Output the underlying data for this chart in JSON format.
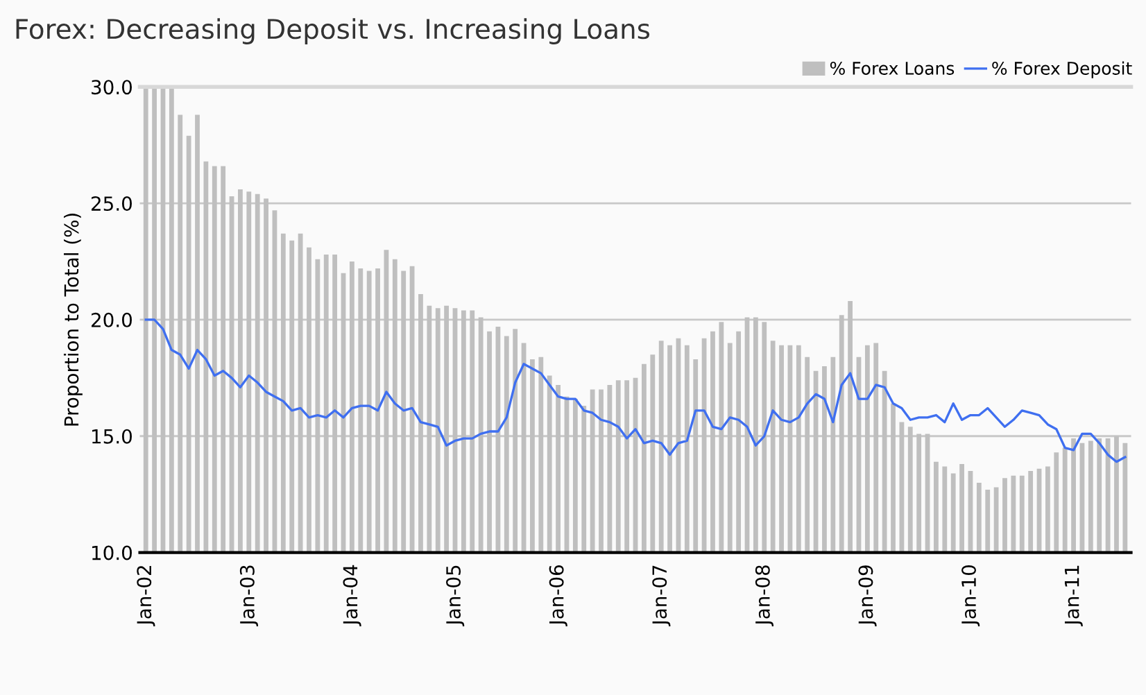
{
  "chart_data": {
    "type": "bar",
    "title": "Forex: Decreasing Deposit vs. Increasing Loans",
    "ylabel": "Proportion to Total (%)",
    "categories": [
      "Jan-02",
      null,
      null,
      null,
      null,
      null,
      null,
      null,
      null,
      null,
      null,
      null,
      "Jan-03",
      null,
      null,
      null,
      null,
      null,
      null,
      null,
      null,
      null,
      null,
      null,
      "Jan-04",
      null,
      null,
      null,
      null,
      null,
      null,
      null,
      null,
      null,
      null,
      null,
      "Jan-05",
      null,
      null,
      null,
      null,
      null,
      null,
      null,
      null,
      null,
      null,
      null,
      "Jan-06",
      null,
      null,
      null,
      null,
      null,
      null,
      null,
      null,
      null,
      null,
      null,
      "Jan-07",
      null,
      null,
      null,
      null,
      null,
      null,
      null,
      null,
      null,
      null,
      null,
      "Jan-08",
      null,
      null,
      null,
      null,
      null,
      null,
      null,
      null,
      null,
      null,
      null,
      "Jan-09",
      null,
      null,
      null,
      null,
      null,
      null,
      null,
      null,
      null,
      null,
      null,
      "Jan-10",
      null,
      null,
      null,
      null,
      null,
      null,
      null,
      null,
      null,
      null,
      null,
      "Jan-11",
      null,
      null,
      null,
      null,
      null,
      null
    ],
    "series": [
      {
        "name": "% Forex Loans",
        "color": "#bfbfbf",
        "values": [
          30,
          30,
          30,
          30,
          28.8,
          27.9,
          28.8,
          26.8,
          26.6,
          26.6,
          25.3,
          25.6,
          25.5,
          25.4,
          25.2,
          24.7,
          23.7,
          23.4,
          23.7,
          23.1,
          22.6,
          22.8,
          22.8,
          22.0,
          22.5,
          22.2,
          22.1,
          22.2,
          23.0,
          22.6,
          22.1,
          22.3,
          21.1,
          20.6,
          20.5,
          20.6,
          20.5,
          20.4,
          20.4,
          20.1,
          19.5,
          19.7,
          19.3,
          19.6,
          19.0,
          18.3,
          18.4,
          17.6,
          17.2,
          16.7,
          16.6,
          16.3,
          17.0,
          17.0,
          17.2,
          17.4,
          17.4,
          17.5,
          18.1,
          18.5,
          19.1,
          18.9,
          19.2,
          18.9,
          18.3,
          19.2,
          19.5,
          19.9,
          19.0,
          19.5,
          20.1,
          20.1,
          19.9,
          19.1,
          18.9,
          18.9,
          18.9,
          18.4,
          17.8,
          18.0,
          18.4,
          20.2,
          20.8,
          18.4,
          18.9,
          19.0,
          17.8,
          16.4,
          15.6,
          15.4,
          15.1,
          15.1,
          13.9,
          13.7,
          13.4,
          13.8,
          13.5,
          13.0,
          12.7,
          12.8,
          13.2,
          13.3,
          13.3,
          13.5,
          13.6,
          13.7,
          14.3,
          14.5,
          14.9,
          14.7,
          14.8,
          14.9,
          14.9,
          15.0,
          14.7
        ]
      },
      {
        "name": "% Forex Deposit",
        "type": "line",
        "color": "#3f6ff0",
        "values": [
          20.0,
          20.0,
          19.6,
          18.7,
          18.5,
          17.9,
          18.7,
          18.3,
          17.6,
          17.8,
          17.5,
          17.1,
          17.6,
          17.3,
          16.9,
          16.7,
          16.5,
          16.1,
          16.2,
          15.8,
          15.9,
          15.8,
          16.1,
          15.8,
          16.2,
          16.3,
          16.3,
          16.1,
          16.9,
          16.4,
          16.1,
          16.2,
          15.6,
          15.5,
          15.4,
          14.6,
          14.8,
          14.9,
          14.9,
          15.1,
          15.2,
          15.2,
          15.8,
          17.3,
          18.1,
          17.9,
          17.7,
          17.2,
          16.7,
          16.6,
          16.6,
          16.1,
          16.0,
          15.7,
          15.6,
          15.4,
          14.9,
          15.3,
          14.7,
          14.8,
          14.7,
          14.2,
          14.7,
          14.8,
          16.1,
          16.1,
          15.4,
          15.3,
          15.8,
          15.7,
          15.4,
          14.6,
          15.0,
          16.1,
          15.7,
          15.6,
          15.8,
          16.4,
          16.8,
          16.6,
          15.6,
          17.2,
          17.7,
          16.6,
          16.6,
          17.2,
          17.1,
          16.4,
          16.2,
          15.7,
          15.8,
          15.8,
          15.9,
          15.6,
          16.4,
          15.7,
          15.9,
          15.9,
          16.2,
          15.8,
          15.4,
          15.7,
          16.1,
          16.0,
          15.9,
          15.5,
          15.3,
          14.5,
          14.4,
          15.1,
          15.1,
          14.7,
          14.2,
          13.9,
          14.1
        ]
      }
    ],
    "ylim": [
      10,
      30
    ],
    "yticks": [
      {
        "value": 10,
        "label": "10.0"
      },
      {
        "value": 15,
        "label": "15.0"
      },
      {
        "value": 20,
        "label": "20.0"
      },
      {
        "value": 25,
        "label": "25.0"
      },
      {
        "value": 30,
        "label": "30.0"
      }
    ],
    "grid": "y",
    "legend": "top right",
    "line_style": "solid",
    "marker": "none"
  }
}
